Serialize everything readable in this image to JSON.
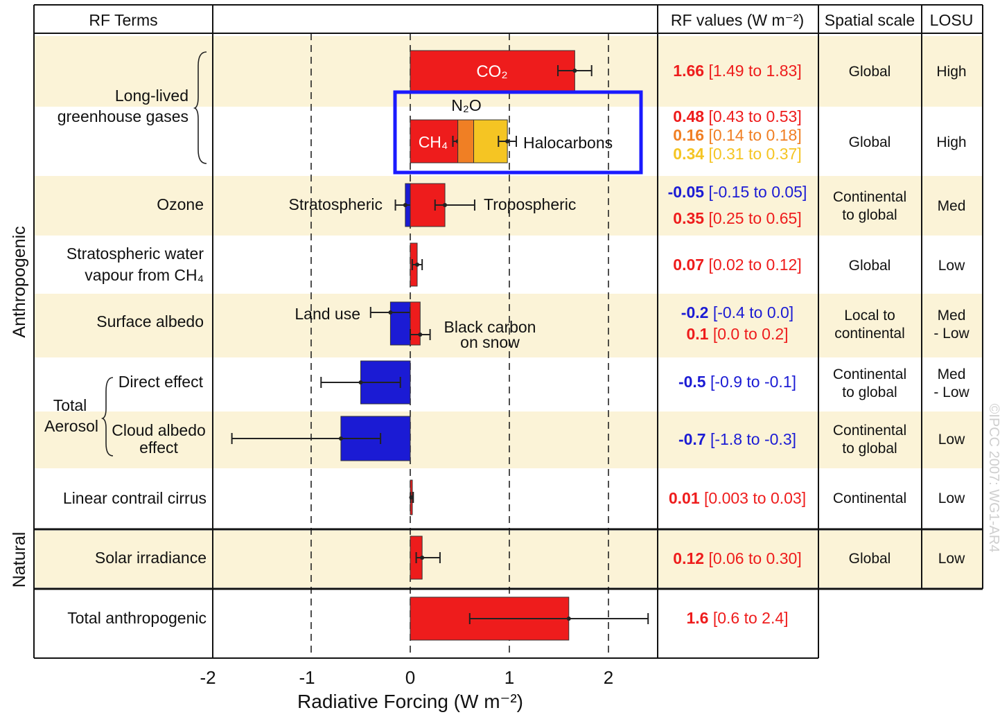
{
  "columns": {
    "terms": "RF Terms",
    "values": "RF values (W m⁻²)",
    "scale": "Spatial scale",
    "losu": "LOSU"
  },
  "group_labels": {
    "anthropogenic": "Anthropogenic",
    "natural": "Natural"
  },
  "colors": {
    "positive": "#ee1c1c",
    "negative": "#1b1bd4",
    "n2o": "#f07f24",
    "halocarbons": "#f5c523",
    "band": "#fbf3d7",
    "highlight": "#1a1aff"
  },
  "rows": [
    {
      "id": "lived",
      "terms": [
        "Long-lived",
        "greenhouse gases"
      ],
      "scale": [
        "Global"
      ],
      "losu": [
        "High"
      ],
      "band": true
    },
    {
      "id": "lived2",
      "terms": [],
      "scale": [
        "Global"
      ],
      "losu": [
        "High"
      ],
      "band": false
    },
    {
      "id": "ozone",
      "terms": [
        "Ozone"
      ],
      "scale": [
        "Continental",
        "to global"
      ],
      "losu": [
        "Med"
      ],
      "band": true
    },
    {
      "id": "strato",
      "terms": [
        "Stratospheric water",
        "vapour from CH₄"
      ],
      "scale": [
        "Global"
      ],
      "losu": [
        "Low"
      ],
      "band": false
    },
    {
      "id": "albedo",
      "terms": [
        "Surface albedo"
      ],
      "scale": [
        "Local to",
        "continental"
      ],
      "losu": [
        "Med",
        "- Low"
      ],
      "band": true
    },
    {
      "id": "direct",
      "terms": [
        "Direct effect"
      ],
      "scale": [
        "Continental",
        "to global"
      ],
      "losu": [
        "Med",
        "- Low"
      ],
      "band": false
    },
    {
      "id": "cloud",
      "terms": [
        "Cloud albedo",
        "effect"
      ],
      "scale": [
        "Continental",
        "to global"
      ],
      "losu": [
        "Low"
      ],
      "band": true
    },
    {
      "id": "contrail",
      "terms": [
        "Linear contrail cirrus"
      ],
      "scale": [
        "Continental"
      ],
      "losu": [
        "Low"
      ],
      "band": false
    },
    {
      "id": "solar",
      "terms": [
        "Solar irradiance"
      ],
      "scale": [
        "Global"
      ],
      "losu": [
        "Low"
      ],
      "band": true
    },
    {
      "id": "total",
      "terms": [
        "Total anthropogenic"
      ],
      "scale": [],
      "losu": [],
      "band": false
    }
  ],
  "aerosol_label": [
    "Total",
    "Aerosol"
  ],
  "rf_values": [
    {
      "row": "lived",
      "value": "1.66",
      "range": "[1.49 to 1.83]",
      "color": "#ee1c1c"
    },
    {
      "row": "lived2",
      "value": "0.48",
      "range": "[0.43 to 0.53]",
      "color": "#ee1c1c"
    },
    {
      "row": "lived2",
      "value": "0.16",
      "range": "[0.14 to 0.18]",
      "color": "#f07f24"
    },
    {
      "row": "lived2",
      "value": "0.34",
      "range": "[0.31 to 0.37]",
      "color": "#f5c523"
    },
    {
      "row": "ozone",
      "value": "-0.05",
      "range": "[-0.15 to 0.05]",
      "color": "#1b1bd4"
    },
    {
      "row": "ozone",
      "value": "0.35",
      "range": "[0.25 to 0.65]",
      "color": "#ee1c1c"
    },
    {
      "row": "strato",
      "value": "0.07",
      "range": "[0.02 to 0.12]",
      "color": "#ee1c1c"
    },
    {
      "row": "albedo",
      "value": "-0.2",
      "range": "[-0.4 to 0.0]",
      "color": "#1b1bd4"
    },
    {
      "row": "albedo",
      "value": "0.1",
      "range": "[0.0 to 0.2]",
      "color": "#ee1c1c"
    },
    {
      "row": "direct",
      "value": "-0.5",
      "range": "[-0.9 to -0.1]",
      "color": "#1b1bd4"
    },
    {
      "row": "cloud",
      "value": "-0.7",
      "range": "[-1.8 to -0.3]",
      "color": "#1b1bd4"
    },
    {
      "row": "contrail",
      "value": "0.01",
      "range": "[0.003 to 0.03]",
      "color": "#ee1c1c"
    },
    {
      "row": "solar",
      "value": "0.12",
      "range": "[0.06 to 0.30]",
      "color": "#ee1c1c"
    },
    {
      "row": "total",
      "value": "1.6",
      "range": "[0.6 to 2.4]",
      "color": "#ee1c1c"
    }
  ],
  "annotations": {
    "co2": "CO₂",
    "ch4": "CH₄",
    "n2o": "N₂O",
    "halocarbons": "Halocarbons",
    "stratospheric": "Stratospheric",
    "tropospheric": "Tropospheric",
    "land_use": "Land use",
    "black_carbon": [
      "Black carbon",
      "on snow"
    ]
  },
  "watermark": "©IPCC 2007: WG1-AR4",
  "chart_data": {
    "type": "bar",
    "orientation": "horizontal",
    "xlabel": "Radiative Forcing  (W m⁻²)",
    "xlim": [
      -2,
      2.5
    ],
    "xticks": [
      -2,
      -1,
      0,
      1,
      2
    ],
    "grid": "dashed vertical lines at -1, 0, 1, 2",
    "bars": [
      {
        "label": "CO₂",
        "row": "lived",
        "start": 0,
        "value": 1.66,
        "low": 1.49,
        "high": 1.83,
        "color": "#ee1c1c"
      },
      {
        "label": "CH₄",
        "row": "lived2",
        "start": 0,
        "value": 0.48,
        "low": 0.43,
        "high": 0.53,
        "color": "#ee1c1c"
      },
      {
        "label": "N₂O",
        "row": "lived2",
        "start": 0.48,
        "value": 0.16,
        "color": "#f07f24"
      },
      {
        "label": "Halocarbons",
        "row": "lived2",
        "start": 0.64,
        "value": 0.34,
        "low": 0.89,
        "high": 1.07,
        "color": "#f5c523"
      },
      {
        "label": "Stratospheric",
        "row": "ozone",
        "start": 0,
        "value": -0.05,
        "low": -0.15,
        "high": 0.05,
        "color": "#1b1bd4"
      },
      {
        "label": "Tropospheric",
        "row": "ozone",
        "start": 0,
        "value": 0.35,
        "low": 0.25,
        "high": 0.65,
        "color": "#ee1c1c"
      },
      {
        "label": "Stratospheric water vapour from CH₄",
        "row": "strato",
        "start": 0,
        "value": 0.07,
        "low": 0.02,
        "high": 0.12,
        "color": "#ee1c1c"
      },
      {
        "label": "Land use",
        "row": "albedo",
        "start": 0,
        "value": -0.2,
        "low": -0.4,
        "high": 0.0,
        "color": "#1b1bd4"
      },
      {
        "label": "Black carbon on snow",
        "row": "albedo",
        "start": 0,
        "value": 0.1,
        "low": 0.0,
        "high": 0.2,
        "color": "#ee1c1c"
      },
      {
        "label": "Direct effect",
        "row": "direct",
        "start": 0,
        "value": -0.5,
        "low": -0.9,
        "high": -0.1,
        "color": "#1b1bd4"
      },
      {
        "label": "Cloud albedo effect",
        "row": "cloud",
        "start": 0,
        "value": -0.7,
        "low": -1.8,
        "high": -0.3,
        "color": "#1b1bd4"
      },
      {
        "label": "Linear contrail cirrus",
        "row": "contrail",
        "start": 0,
        "value": 0.01,
        "low": 0.003,
        "high": 0.03,
        "color": "#ee1c1c"
      },
      {
        "label": "Solar irradiance",
        "row": "solar",
        "start": 0,
        "value": 0.12,
        "low": 0.06,
        "high": 0.3,
        "color": "#ee1c1c"
      },
      {
        "label": "Total anthropogenic",
        "row": "total",
        "start": 0,
        "value": 1.6,
        "low": 0.6,
        "high": 2.4,
        "color": "#ee1c1c"
      }
    ]
  }
}
